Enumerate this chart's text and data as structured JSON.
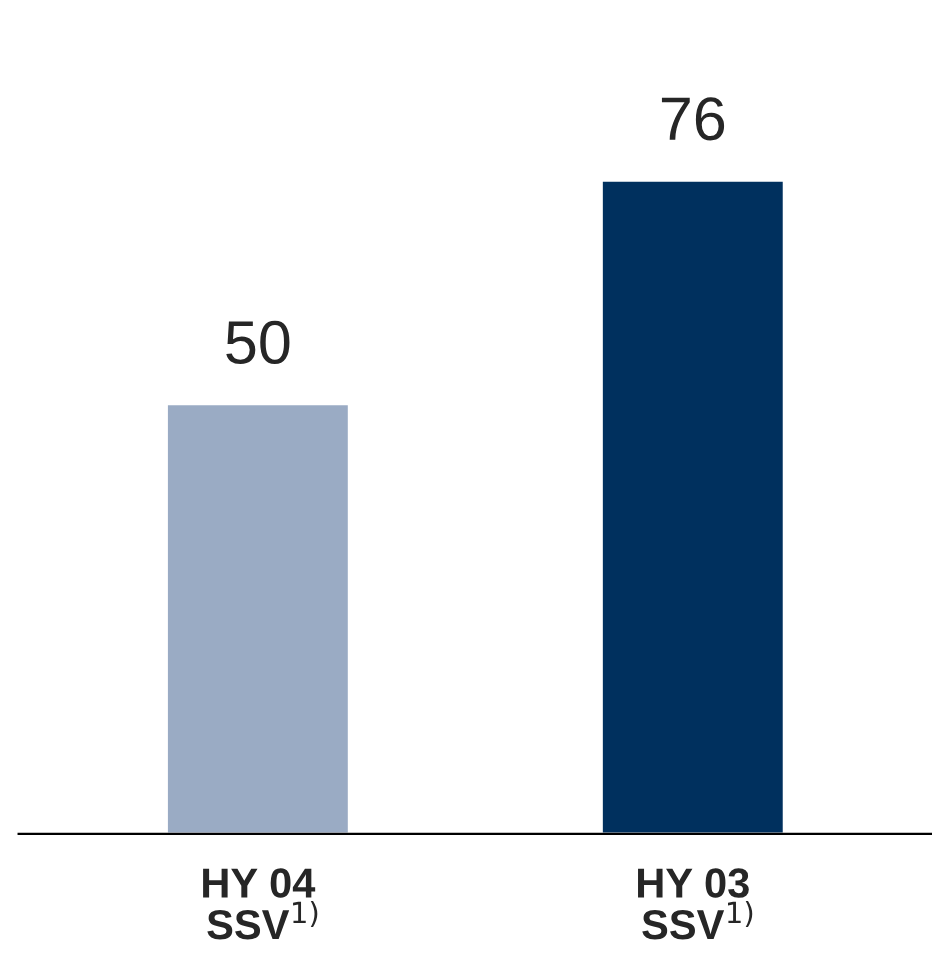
{
  "chart_data": {
    "type": "bar",
    "categories": [
      "HY 04\n SSV$^{1)}$",
      "HY 03\n SSV$^{1)}$"
    ],
    "values": [
      50,
      76
    ],
    "colors": [
      "#9aabc4",
      "#00305e"
    ],
    "data_labels": true,
    "grid": false,
    "legend": false,
    "tick_labels": "x"
  }
}
